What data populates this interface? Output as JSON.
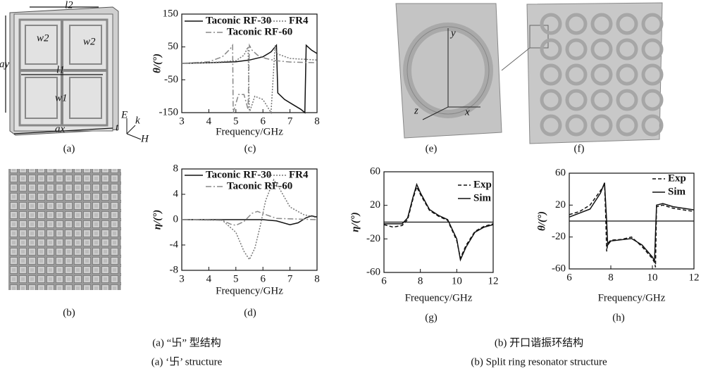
{
  "panels": [
    "(a)",
    "(b)",
    "(c)",
    "(d)",
    "(e)",
    "(f)",
    "(g)",
    "(h)"
  ],
  "figure_a": {
    "labels": [
      "l2",
      "w2",
      "w2",
      "ay",
      "l1",
      "w1",
      "ax",
      "E",
      "k",
      "H",
      "t"
    ]
  },
  "figure_e": {
    "labels": [
      "y",
      "z",
      "x"
    ]
  },
  "captions": {
    "left_cn": "(a) “卐” 型结构",
    "left_en": "(a) ‘卐’ structure",
    "right_cn": "(b) 开口谐振环结构",
    "right_en": "(b) Split ring resonator structure"
  },
  "chart_data": [
    {
      "type": "line",
      "xlabel": "Frequency/GHz",
      "ylabel": "θ/(°)",
      "xlim": [
        3,
        8
      ],
      "xticks": [
        3,
        4,
        5,
        6,
        7,
        8
      ],
      "ylim": [
        -150,
        150
      ],
      "yticks": [
        150,
        50,
        -50,
        -150
      ],
      "series": [
        {
          "name": "Taconic RF-30",
          "color": "#111111",
          "dash": "solid",
          "x": [
            3,
            4,
            5,
            5.5,
            6,
            6.3,
            6.5,
            6.55,
            6.8,
            7.1,
            7.4,
            7.55,
            7.6,
            7.8,
            8
          ],
          "values": [
            0,
            2,
            5,
            10,
            20,
            35,
            55,
            -90,
            -110,
            -125,
            -140,
            -150,
            55,
            40,
            30
          ]
        },
        {
          "name": "FR4",
          "color": "#777777",
          "dash": "dot",
          "x": [
            3,
            4,
            5,
            5.3,
            5.45,
            5.5,
            5.7,
            6.0,
            6.3,
            6.45,
            6.5,
            7,
            8
          ],
          "values": [
            0,
            2,
            8,
            25,
            50,
            -150,
            -100,
            -110,
            -150,
            55,
            30,
            15,
            10
          ]
        },
        {
          "name": "Taconic RF-60",
          "color": "#888888",
          "dash": "dashdot",
          "x": [
            3,
            4,
            4.5,
            4.8,
            4.88,
            4.9,
            5.1,
            5.3,
            5.45,
            5.5,
            5.6,
            5.8,
            6.1,
            6.5,
            7,
            8
          ],
          "values": [
            0,
            5,
            20,
            45,
            55,
            -150,
            -95,
            -95,
            -140,
            55,
            40,
            25,
            15,
            8,
            4,
            2
          ]
        }
      ]
    },
    {
      "type": "line",
      "xlabel": "Frequency/GHz",
      "ylabel": "η/(°)",
      "xlim": [
        3,
        8
      ],
      "xticks": [
        3,
        4,
        5,
        6,
        7,
        8
      ],
      "ylim": [
        -8,
        8
      ],
      "yticks": [
        8,
        4,
        0,
        -4,
        -8
      ],
      "series": [
        {
          "name": "Taconic RF-30",
          "color": "#111111",
          "dash": "solid",
          "x": [
            3,
            6,
            6.5,
            7,
            7.3,
            7.6,
            7.8,
            8
          ],
          "values": [
            0,
            0,
            -0.2,
            -0.8,
            -0.5,
            0.3,
            0.6,
            0.4
          ]
        },
        {
          "name": "FR4",
          "color": "#777777",
          "dash": "dot",
          "x": [
            3,
            4.5,
            5,
            5.3,
            5.5,
            5.7,
            5.9,
            6.1,
            6.4,
            6.6,
            7,
            7.5,
            8
          ],
          "values": [
            0,
            -0.1,
            -2,
            -5,
            -6.3,
            -4.5,
            -1,
            3,
            6.3,
            5,
            2,
            0.8,
            0.3
          ]
        },
        {
          "name": "Taconic RF-60",
          "color": "#888888",
          "dash": "dashdot",
          "x": [
            3,
            4.5,
            4.8,
            5.0,
            5.3,
            5.6,
            5.8,
            6.1,
            6.5,
            8
          ],
          "values": [
            0,
            -0.1,
            -0.7,
            -0.9,
            -0.3,
            1.0,
            1.3,
            0.8,
            0.2,
            0
          ]
        }
      ]
    },
    {
      "type": "line",
      "xlabel": "Frequency/GHz",
      "ylabel": "η/(°)",
      "xlim": [
        6,
        12
      ],
      "xticks": [
        6,
        8,
        10,
        12
      ],
      "ylim": [
        -60,
        60
      ],
      "yticks": [
        60,
        20,
        -20,
        -60
      ],
      "zero_line": true,
      "series": [
        {
          "name": "Exp",
          "color": "#111111",
          "dash": "dash",
          "x": [
            6,
            6.5,
            7,
            7.3,
            7.6,
            7.8,
            8,
            8.5,
            9,
            9.5,
            10,
            10.2,
            10.5,
            11,
            11.5,
            12
          ],
          "values": [
            -3,
            -6,
            -4,
            3,
            28,
            42,
            33,
            14,
            7,
            2,
            -22,
            -43,
            -28,
            -11,
            -5,
            -2
          ]
        },
        {
          "name": "Sim",
          "color": "#111111",
          "dash": "solid",
          "x": [
            6,
            7,
            7.3,
            7.6,
            7.8,
            8,
            8.5,
            9,
            9.5,
            10,
            10.2,
            10.5,
            11,
            11.5,
            12
          ],
          "values": [
            -2,
            -2,
            5,
            30,
            45,
            35,
            15,
            8,
            3,
            -20,
            -45,
            -30,
            -12,
            -6,
            -3
          ]
        }
      ]
    },
    {
      "type": "line",
      "xlabel": "Frequency/GHz",
      "ylabel": "θ/(°)",
      "xlim": [
        6,
        12
      ],
      "xticks": [
        6,
        8,
        10,
        12
      ],
      "ylim": [
        -60,
        60
      ],
      "yticks": [
        60,
        20,
        -20,
        -60
      ],
      "zero_line": true,
      "series": [
        {
          "name": "Exp",
          "color": "#111111",
          "dash": "dash",
          "x": [
            6,
            6.5,
            7,
            7.5,
            7.7,
            7.75,
            7.8,
            7.85,
            8,
            8.5,
            9,
            9.5,
            10,
            10.1,
            10.15,
            10.2,
            10.5,
            11,
            12
          ],
          "values": [
            8,
            12,
            20,
            38,
            46,
            10,
            -38,
            -28,
            -24,
            -23,
            -20,
            -32,
            -47,
            -52,
            -58,
            18,
            20,
            16,
            12
          ]
        },
        {
          "name": "Sim",
          "color": "#111111",
          "dash": "solid",
          "x": [
            6,
            7,
            7.5,
            7.7,
            7.8,
            7.85,
            8,
            9,
            9.5,
            10,
            10.1,
            10.2,
            10.5,
            11,
            12
          ],
          "values": [
            5,
            15,
            35,
            48,
            0,
            -30,
            -25,
            -22,
            -30,
            -45,
            -50,
            20,
            22,
            18,
            14
          ]
        }
      ]
    }
  ]
}
